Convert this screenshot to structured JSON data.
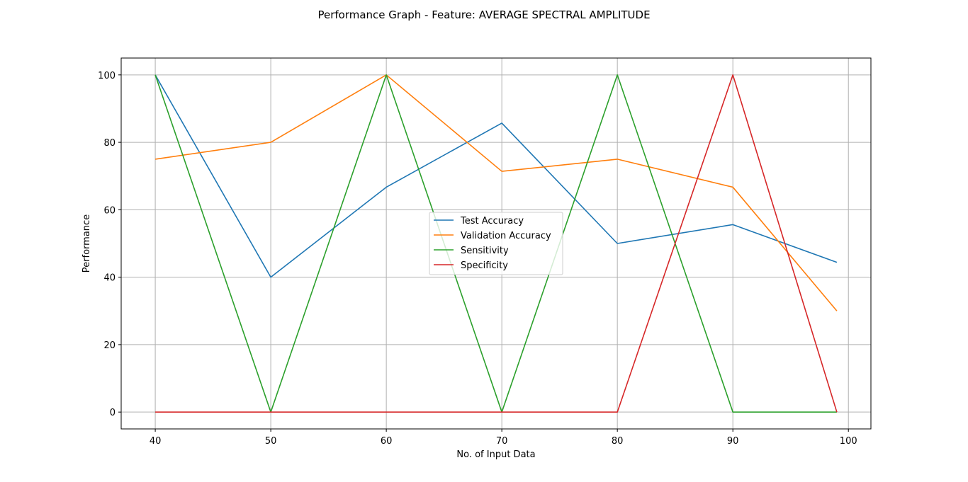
{
  "chart_data": {
    "type": "line",
    "title": "Performance Graph - Feature: AVERAGE SPECTRAL AMPLITUDE",
    "xlabel": "No. of Input Data",
    "ylabel": "Performance",
    "x": [
      40,
      50,
      60,
      70,
      80,
      90,
      99
    ],
    "xlim": [
      37.05,
      101.95
    ],
    "ylim": [
      -5,
      105
    ],
    "xticks": [
      40,
      50,
      60,
      70,
      80,
      90,
      100
    ],
    "yticks": [
      0,
      20,
      40,
      60,
      80,
      100
    ],
    "grid": true,
    "legend_position": "center",
    "series": [
      {
        "name": "Test Accuracy",
        "color": "#1f77b4",
        "values": [
          100,
          40,
          66.7,
          85.7,
          50,
          55.6,
          44.4
        ]
      },
      {
        "name": "Validation Accuracy",
        "color": "#ff7f0e",
        "values": [
          75,
          80,
          100,
          71.4,
          75,
          66.7,
          30
        ]
      },
      {
        "name": "Sensitivity",
        "color": "#2ca02c",
        "values": [
          100,
          0,
          100,
          0,
          100,
          0,
          0
        ]
      },
      {
        "name": "Specificity",
        "color": "#d62728",
        "values": [
          0,
          0,
          0,
          0,
          0,
          100,
          0
        ]
      }
    ]
  }
}
